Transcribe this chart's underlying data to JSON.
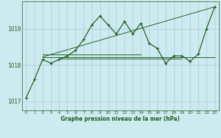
{
  "title": "Graphe pression niveau de la mer (hPa)",
  "background_color": "#cdeaf0",
  "grid_color": "#aacfda",
  "line_color": "#1a5c1a",
  "xlim": [
    -0.5,
    23.5
  ],
  "ylim": [
    1016.75,
    1019.75
  ],
  "yticks": [
    1017,
    1018,
    1019
  ],
  "xticks": [
    0,
    1,
    2,
    3,
    4,
    5,
    6,
    7,
    8,
    9,
    10,
    11,
    12,
    13,
    14,
    15,
    16,
    17,
    18,
    19,
    20,
    21,
    22,
    23
  ],
  "series1_x": [
    0,
    1,
    2,
    3,
    4,
    5,
    6,
    7,
    8,
    9,
    10,
    11,
    12,
    13,
    14,
    15,
    16,
    17,
    18,
    19,
    20,
    21,
    22,
    23
  ],
  "series1_y": [
    1017.1,
    1017.6,
    1018.15,
    1018.05,
    1018.15,
    1018.25,
    1018.4,
    1018.7,
    1019.1,
    1019.35,
    1019.1,
    1018.85,
    1019.2,
    1018.85,
    1019.15,
    1018.6,
    1018.45,
    1018.05,
    1018.25,
    1018.25,
    1018.1,
    1018.3,
    1019.0,
    1019.6
  ],
  "series2_x": [
    2,
    23
  ],
  "series2_y": [
    1018.22,
    1018.22
  ],
  "series3_x": [
    2,
    23
  ],
  "series3_y": [
    1018.22,
    1019.6
  ],
  "series4_x": [
    4,
    19
  ],
  "series4_y": [
    1018.17,
    1018.17
  ],
  "series5_x": [
    2,
    14
  ],
  "series5_y": [
    1018.28,
    1018.28
  ]
}
